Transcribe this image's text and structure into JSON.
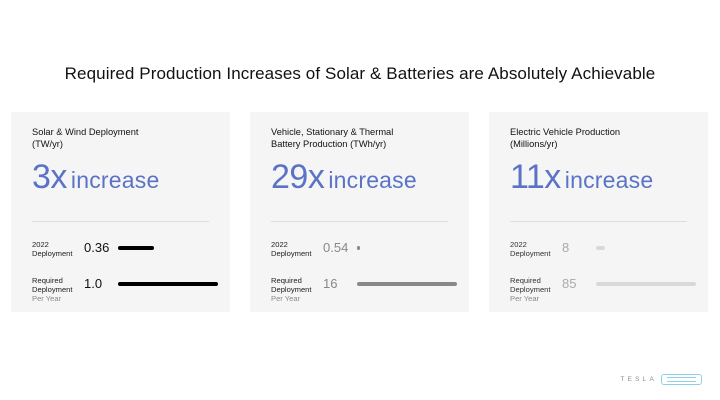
{
  "title": "Required Production Increases of Solar & Batteries are Absolutely Achievable",
  "row_labels": {
    "current_line1": "2022",
    "current_line2": "Deployment",
    "required_line1": "Required",
    "required_line2": "Deployment",
    "required_sub": "Per Year"
  },
  "cards": [
    {
      "title_line1": "Solar & Wind Deployment",
      "title_line2": "(TW/yr)",
      "multiplier": "3x",
      "increase_word": "increase",
      "current_value": "0.36",
      "required_value": "1.0",
      "current_fraction": 0.36,
      "required_fraction": 1.0,
      "bar_color": "#000000",
      "headline_color": "#5b73c7"
    },
    {
      "title_line1": "Vehicle, Stationary & Thermal",
      "title_line2": "Battery Production (TWh/yr)",
      "multiplier": "29x",
      "increase_word": "increase",
      "current_value": "0.54",
      "required_value": "16",
      "current_fraction": 0.034,
      "required_fraction": 1.0,
      "bar_color": "#888888",
      "headline_color": "#5b73c7"
    },
    {
      "title_line1": "Electric Vehicle Production",
      "title_line2": "(Millions/yr)",
      "multiplier": "11x",
      "increase_word": "increase",
      "current_value": "8",
      "required_value": "85",
      "current_fraction": 0.094,
      "required_fraction": 1.0,
      "bar_color": "#d9d9d9",
      "headline_color": "#5b73c7"
    }
  ],
  "brand": {
    "wordmark": "TESLA",
    "badge_icon": "live-badge-icon",
    "badge_color": "#8fd0ea"
  }
}
